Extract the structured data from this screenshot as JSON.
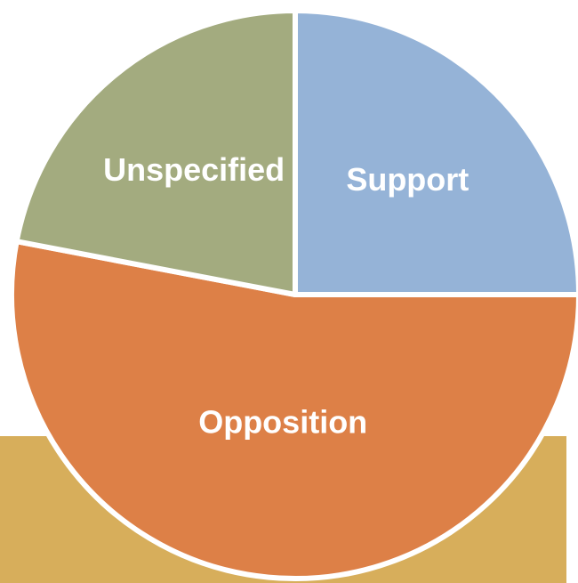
{
  "chart_data": {
    "type": "pie",
    "categories": [
      "Support",
      "Opposition",
      "Unspecified"
    ],
    "values": [
      25,
      53,
      22
    ],
    "colors": [
      "#95b3d7",
      "#dd8047",
      "#a3ab7f"
    ]
  }
}
